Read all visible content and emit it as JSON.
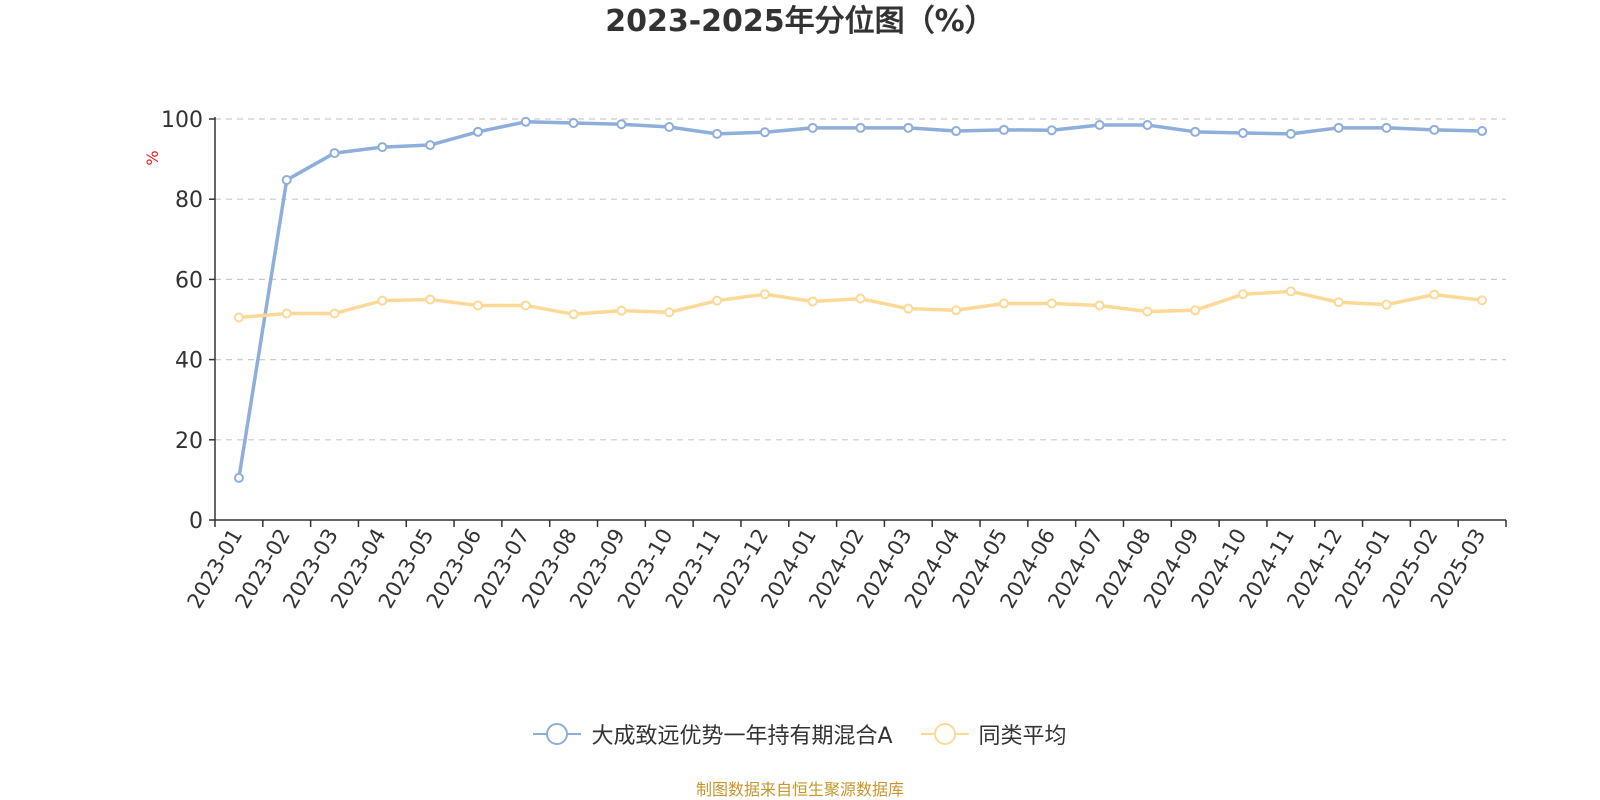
{
  "colors": {
    "series_1": "#8eaedb",
    "series_2": "#fdd997",
    "unit_label": "#e02020",
    "axis": "#333333",
    "grid": "#cccccc",
    "source_note": "#c8962c"
  },
  "chart_data": {
    "type": "line",
    "title": "2023-2025年分位图（%）",
    "ylabel": "%",
    "xlabel": "",
    "ylim": [
      0,
      100
    ],
    "yticks": [
      0,
      20,
      40,
      60,
      80,
      100
    ],
    "grid": true,
    "grid_style": "dashed horizontal",
    "legend_position": "bottom-center",
    "categories": [
      "2023-01",
      "2023-02",
      "2023-03",
      "2023-04",
      "2023-05",
      "2023-06",
      "2023-07",
      "2023-08",
      "2023-09",
      "2023-10",
      "2023-11",
      "2023-12",
      "2024-01",
      "2024-02",
      "2024-03",
      "2024-04",
      "2024-05",
      "2024-06",
      "2024-07",
      "2024-08",
      "2024-09",
      "2024-10",
      "2024-11",
      "2024-12",
      "2025-01",
      "2025-02",
      "2025-03"
    ],
    "series": [
      {
        "name": "大成致远优势一年持有期混合A",
        "color": "#8eaedb",
        "values": [
          10.5,
          84.8,
          91.5,
          93.0,
          93.5,
          96.8,
          99.3,
          99.0,
          98.7,
          98.0,
          96.3,
          96.7,
          97.8,
          97.8,
          97.8,
          97.0,
          97.3,
          97.2,
          98.5,
          98.5,
          96.8,
          96.5,
          96.3,
          97.8,
          97.8,
          97.3,
          97.0
        ]
      },
      {
        "name": "同类平均",
        "color": "#fdd997",
        "values": [
          50.5,
          51.5,
          51.5,
          54.7,
          55.0,
          53.5,
          53.5,
          51.3,
          52.2,
          51.8,
          54.7,
          56.3,
          54.5,
          55.2,
          52.7,
          52.3,
          54.0,
          54.0,
          53.5,
          52.0,
          52.3,
          56.3,
          57.0,
          54.3,
          53.7,
          56.2,
          54.8
        ]
      }
    ]
  },
  "source_note": "制图数据来自恒生聚源数据库"
}
